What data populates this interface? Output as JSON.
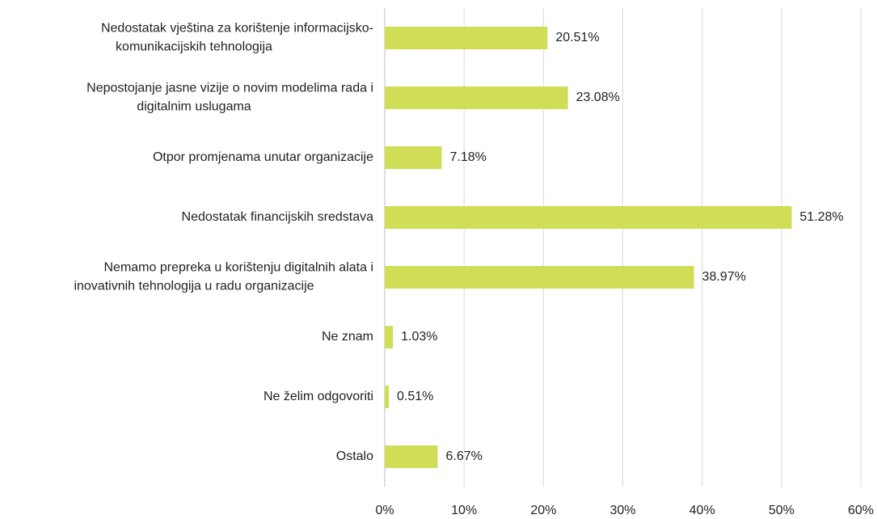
{
  "chart_data": {
    "type": "bar",
    "orientation": "horizontal",
    "categories": [
      [
        "Nedostatak vještina za korištenje informacijsko-",
        "komunikacijskih tehnologija"
      ],
      [
        "Nepostojanje jasne vizije o novim modelima rada i",
        "digitalnim uslugama"
      ],
      [
        "Otpor promjenama unutar organizacije"
      ],
      [
        "Nedostatak financijskih sredstava"
      ],
      [
        "Nemamo prepreka u korištenju digitalnih alata i",
        "inovativnih tehnologija u radu organizacije"
      ],
      [
        "Ne znam"
      ],
      [
        "Ne želim odgovoriti"
      ],
      [
        "Ostalo"
      ]
    ],
    "values": [
      20.51,
      23.08,
      7.18,
      51.28,
      38.97,
      1.03,
      0.51,
      6.67
    ],
    "value_labels": [
      "20.51%",
      "23.08%",
      "7.18%",
      "51.28%",
      "38.97%",
      "1.03%",
      "0.51%",
      "6.67%"
    ],
    "color": "#d0dd57",
    "xlim": [
      0,
      60
    ],
    "xticks": [
      {
        "value": 0,
        "label": "0%"
      },
      {
        "value": 10,
        "label": "10%"
      },
      {
        "value": 20,
        "label": "20%"
      },
      {
        "value": 30,
        "label": "30%"
      },
      {
        "value": 40,
        "label": "40%"
      },
      {
        "value": 50,
        "label": "50%"
      },
      {
        "value": 60,
        "label": "60%"
      }
    ],
    "grid": true
  }
}
